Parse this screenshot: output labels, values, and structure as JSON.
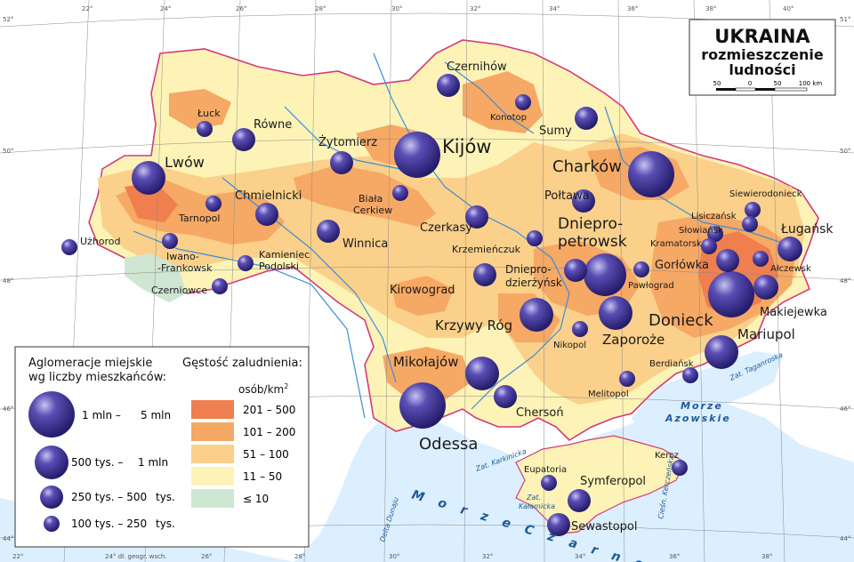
{
  "title": {
    "main": "UKRAINA",
    "subtitle_line1": "rozmieszczenie",
    "subtitle_line2": "ludności",
    "scale_ticks": [
      "50",
      "0",
      "50",
      "100 km"
    ]
  },
  "legend_left": {
    "title_line1": "Aglomeracje miejskie",
    "title_line2": "wg liczby mieszkańców:",
    "items": [
      {
        "label_a": "1 mln –",
        "label_b": "5 mln"
      },
      {
        "label_a": "500 tys. –",
        "label_b": "1 mln"
      },
      {
        "label_a": "250 tys. – 500",
        "label_b": "tys."
      },
      {
        "label_a": "100 tys. – 250",
        "label_b": "tys."
      }
    ]
  },
  "legend_density": {
    "title": "Gęstość zaludnienia:",
    "unit": "osób/km",
    "unit_sup": "2",
    "items": [
      {
        "label": "201 – 500",
        "color": "#ef7f4f"
      },
      {
        "label": "101 – 200",
        "color": "#f6a865"
      },
      {
        "label": "51 – 100",
        "color": "#fad08a"
      },
      {
        "label": "11 – 50",
        "color": "#fdf3b6"
      },
      {
        "label": "≤ 10",
        "color": "#cfe6d2"
      }
    ]
  },
  "cities": [
    {
      "name": "Kijów"
    },
    {
      "name": "Charków"
    },
    {
      "name": "Dniepro-"
    },
    {
      "name": "petrowsk"
    },
    {
      "name": "Odessa"
    },
    {
      "name": "Donieck"
    },
    {
      "name": "Zaporoże"
    },
    {
      "name": "Krzywy Róg"
    },
    {
      "name": "Mariupol"
    },
    {
      "name": "Lwów"
    },
    {
      "name": "Mikołajów"
    },
    {
      "name": "Ługańsk"
    },
    {
      "name": "Makiejewka"
    },
    {
      "name": "Winnica"
    },
    {
      "name": "Chersoń"
    },
    {
      "name": "Połtawa"
    },
    {
      "name": "Czernihów"
    },
    {
      "name": "Czerkasy"
    },
    {
      "name": "Symferopol"
    },
    {
      "name": "Gorłówka"
    },
    {
      "name": "Żytomierz"
    },
    {
      "name": "Sumy"
    },
    {
      "name": "Równe"
    },
    {
      "name": "Kirowograd"
    },
    {
      "name": "Dniepro-"
    },
    {
      "name": "dzierżyńsk"
    },
    {
      "name": "Chmielnicki"
    },
    {
      "name": "Sewastopol"
    },
    {
      "name": "Krzemieńczuk"
    },
    {
      "name": "Łuck"
    },
    {
      "name": "Biała"
    },
    {
      "name": "Cerkiew"
    },
    {
      "name": "Kamieniec"
    },
    {
      "name": "Podolski"
    },
    {
      "name": "Tarnopol"
    },
    {
      "name": "Iwano-"
    },
    {
      "name": "-Frankowsk"
    },
    {
      "name": "Czerniowce"
    },
    {
      "name": "Użhorod"
    },
    {
      "name": "Konotop"
    },
    {
      "name": "Siewierodonieck"
    },
    {
      "name": "Lisiczańsk"
    },
    {
      "name": "Słowiańsk"
    },
    {
      "name": "Kramatorsk"
    },
    {
      "name": "Ałczewsk"
    },
    {
      "name": "Pawłograd"
    },
    {
      "name": "Nikopol"
    },
    {
      "name": "Melitopol"
    },
    {
      "name": "Berdiańsk"
    },
    {
      "name": "Eupatoria"
    },
    {
      "name": "Kercz"
    }
  ],
  "water_labels": {
    "black_sea": "M o r z e     C z a r n e",
    "azov_line1": "Morze",
    "azov_line2": "Azowskie",
    "karkinicka": "Zat. Karkinicka",
    "kalamicka_line1": "Zat.",
    "kalamicka_line2": "Kałamicka",
    "kerch_strait": "Cieśn. Kerczeńska",
    "taganrog": "Zat. Taganroska",
    "danube_delta": "Delta Dunaju"
  },
  "coordinates": {
    "top_lon": [
      "22°",
      "24°",
      "26°",
      "28°",
      "30°",
      "32°",
      "34°",
      "36°",
      "38°",
      "40°"
    ],
    "bottom_lon": [
      "22°",
      "24° dł. geogr. wsch.",
      "26°",
      "28°",
      "30°",
      "32°",
      "34°",
      "36°",
      "38°"
    ],
    "left_lat": [
      "52°",
      "50°",
      "48°",
      "46°",
      "44°"
    ],
    "right_lat": [
      "51°",
      "50°",
      "48°",
      "46°",
      "44°"
    ]
  }
}
